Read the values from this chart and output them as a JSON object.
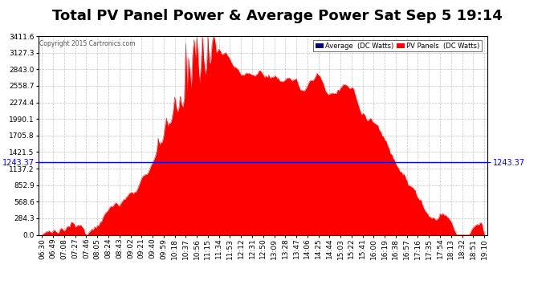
{
  "title": "Total PV Panel Power & Average Power Sat Sep 5 19:14",
  "copyright": "Copyright 2015 Cartronics.com",
  "avg_value": 1243.37,
  "y_max": 3411.6,
  "y_min": 0.0,
  "y_ticks": [
    0.0,
    284.3,
    568.6,
    852.9,
    1137.2,
    1421.5,
    1705.8,
    1990.1,
    2274.4,
    2558.7,
    2843.0,
    3127.3,
    3411.6
  ],
  "background_color": "#ffffff",
  "plot_bg_color": "#ffffff",
  "grid_color": "#aaaaaa",
  "fill_color": "#ff0000",
  "line_color": "#ff0000",
  "avg_line_color": "#0000ff",
  "legend_avg_color": "#000080",
  "legend_pv_color": "#ff0000",
  "x_labels": [
    "06:30",
    "06:49",
    "07:08",
    "07:27",
    "07:46",
    "08:05",
    "08:24",
    "08:43",
    "09:02",
    "09:21",
    "09:40",
    "09:59",
    "10:18",
    "10:37",
    "10:56",
    "11:15",
    "11:34",
    "11:53",
    "12:12",
    "12:31",
    "12:50",
    "13:09",
    "13:28",
    "13:47",
    "14:06",
    "14:25",
    "14:44",
    "15:03",
    "15:22",
    "15:41",
    "16:00",
    "16:19",
    "16:38",
    "16:57",
    "17:16",
    "17:35",
    "17:54",
    "18:13",
    "18:32",
    "18:51",
    "19:10"
  ],
  "tick_fontsize": 6.5,
  "avg_label_fontsize": 7,
  "title_fontsize": 13
}
